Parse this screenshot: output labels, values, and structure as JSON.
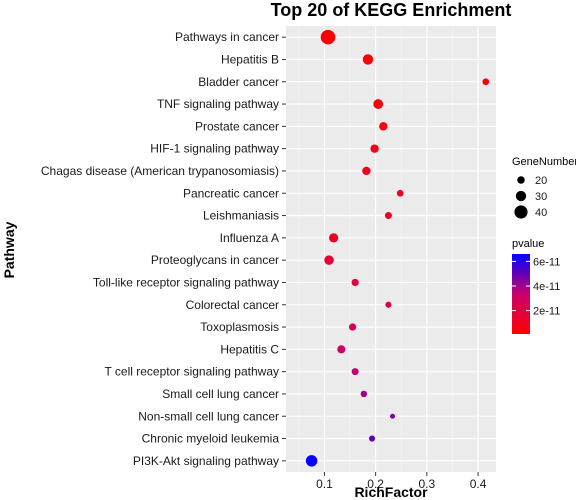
{
  "chart_data": {
    "type": "scatter",
    "title": "Top 20 of KEGG Enrichment",
    "xlabel": "RichFactor",
    "ylabel": "Pathway",
    "xlim": [
      0.025,
      0.435
    ],
    "xticks": [
      "0.1",
      "0.2",
      "0.3",
      "0.4"
    ],
    "xtick_values": [
      0.1,
      0.2,
      0.3,
      0.4
    ],
    "grid": true,
    "legend_position": "right",
    "categories": [
      "Pathways in cancer",
      "Hepatitis B",
      "Bladder cancer",
      "TNF signaling pathway",
      "Prostate cancer",
      "HIF-1 signaling pathway",
      "Chagas disease (American trypanosomiasis)",
      "Pancreatic cancer",
      "Leishmaniasis",
      "Influenza A",
      "Proteoglycans in cancer",
      "Toll-like receptor signaling pathway",
      "Colorectal cancer",
      "Toxoplasmosis",
      "Hepatitis C",
      "T cell receptor signaling pathway",
      "Small cell lung cancer",
      "Non-small cell lung cancer",
      "Chronic myeloid leukemia",
      "PI3K-Akt signaling pathway"
    ],
    "points": [
      {
        "pathway": "Pathways in cancer",
        "rich_factor": 0.107,
        "gene_number": 45,
        "pvalue": 1e-12
      },
      {
        "pathway": "Hepatitis B",
        "rich_factor": 0.185,
        "gene_number": 30,
        "pvalue": 2e-12
      },
      {
        "pathway": "Bladder cancer",
        "rich_factor": 0.415,
        "gene_number": 17,
        "pvalue": 2e-12
      },
      {
        "pathway": "TNF signaling pathway",
        "rich_factor": 0.205,
        "gene_number": 28,
        "pvalue": 4e-12
      },
      {
        "pathway": "Prostate cancer",
        "rich_factor": 0.215,
        "gene_number": 23,
        "pvalue": 5e-12
      },
      {
        "pathway": "HIF-1 signaling pathway",
        "rich_factor": 0.198,
        "gene_number": 23,
        "pvalue": 8e-12
      },
      {
        "pathway": "Chagas disease (American trypanosomiasis)",
        "rich_factor": 0.182,
        "gene_number": 23,
        "pvalue": 1e-11
      },
      {
        "pathway": "Pancreatic cancer",
        "rich_factor": 0.248,
        "gene_number": 17,
        "pvalue": 1.1e-11
      },
      {
        "pathway": "Leishmaniasis",
        "rich_factor": 0.225,
        "gene_number": 18,
        "pvalue": 1.2e-11
      },
      {
        "pathway": "Influenza A",
        "rich_factor": 0.118,
        "gene_number": 26,
        "pvalue": 1.3e-11
      },
      {
        "pathway": "Proteoglycans in cancer",
        "rich_factor": 0.109,
        "gene_number": 27,
        "pvalue": 1.6e-11
      },
      {
        "pathway": "Toll-like receptor signaling pathway",
        "rich_factor": 0.16,
        "gene_number": 19,
        "pvalue": 1.9e-11
      },
      {
        "pathway": "Colorectal cancer",
        "rich_factor": 0.225,
        "gene_number": 15,
        "pvalue": 2.3e-11
      },
      {
        "pathway": "Toxoplasmosis",
        "rich_factor": 0.155,
        "gene_number": 19,
        "pvalue": 2.6e-11
      },
      {
        "pathway": "Hepatitis C",
        "rich_factor": 0.133,
        "gene_number": 22,
        "pvalue": 3e-11
      },
      {
        "pathway": "T cell receptor signaling pathway",
        "rich_factor": 0.16,
        "gene_number": 18,
        "pvalue": 3.5e-11
      },
      {
        "pathway": "Small cell lung cancer",
        "rich_factor": 0.177,
        "gene_number": 16,
        "pvalue": 4e-11
      },
      {
        "pathway": "Non-small cell lung cancer",
        "rich_factor": 0.233,
        "gene_number": 11,
        "pvalue": 4.5e-11
      },
      {
        "pathway": "Chronic myeloid leukemia",
        "rich_factor": 0.193,
        "gene_number": 15,
        "pvalue": 5e-11
      },
      {
        "pathway": "PI3K-Akt signaling pathway",
        "rich_factor": 0.075,
        "gene_number": 34,
        "pvalue": 6.5e-11
      }
    ],
    "size_legend": {
      "title": "GeneNumber",
      "values": [
        20,
        30,
        40
      ],
      "labels": [
        "20",
        "30",
        "40"
      ]
    },
    "color_legend": {
      "title": "pvalue",
      "values": [
        2e-11,
        4e-11,
        6e-11
      ],
      "labels": [
        "2e-11",
        "4e-11",
        "6e-11"
      ],
      "low_color": "#ff0000",
      "high_color": "#0000ff",
      "range": [
        1e-12,
        6.6e-11
      ]
    },
    "panel_background": "#ebebeb",
    "grid_color": "#ffffff"
  }
}
